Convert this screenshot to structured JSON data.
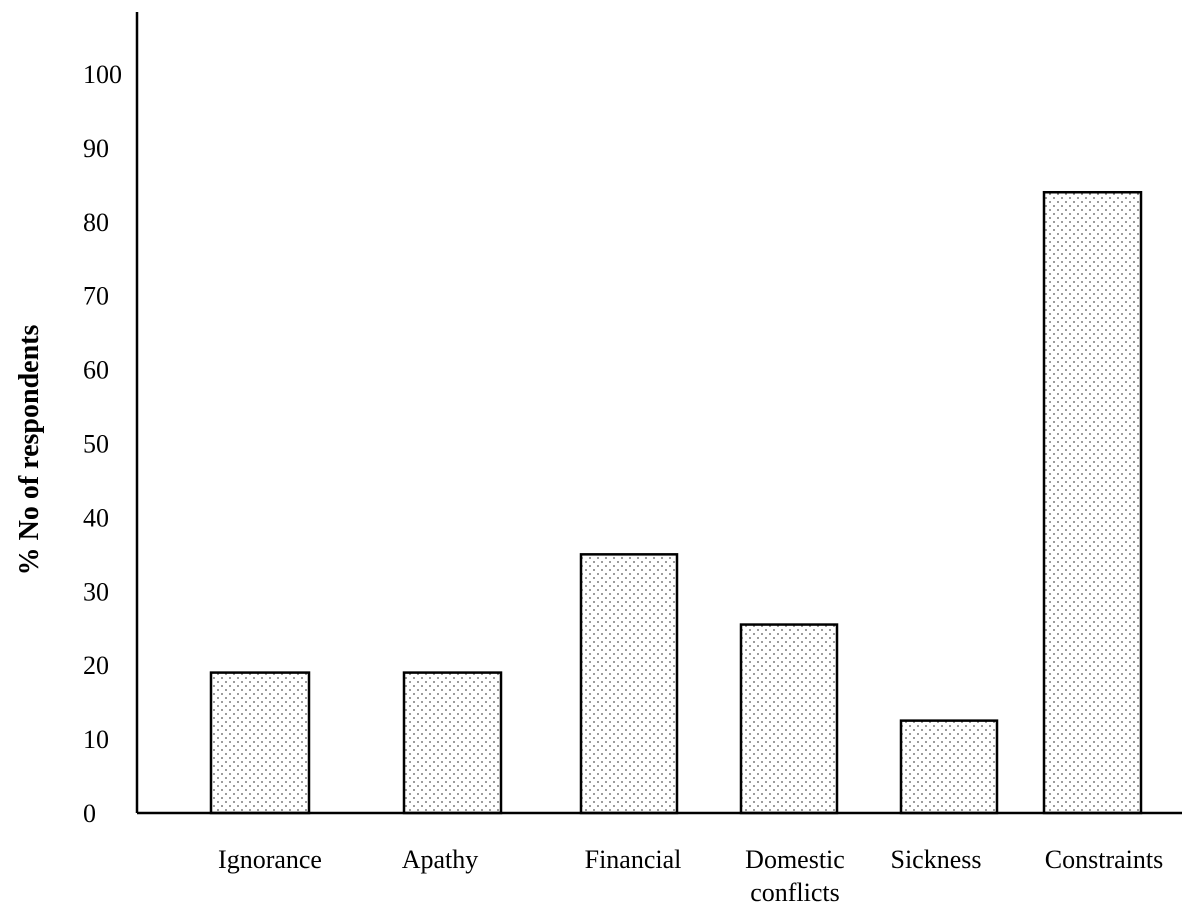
{
  "chart_data": {
    "type": "bar",
    "ylabel": "% No of respondents",
    "xlabel": "",
    "ylim": [
      0,
      100
    ],
    "yticks": [
      0,
      10,
      20,
      30,
      40,
      50,
      60,
      70,
      80,
      90,
      100
    ],
    "categories": [
      [
        "Ignorance"
      ],
      [
        "Apathy"
      ],
      [
        "Financial"
      ],
      [
        "Domestic",
        "conflicts"
      ],
      [
        "Sickness"
      ],
      [
        "Constraints"
      ]
    ],
    "values": [
      19,
      19,
      35,
      25.5,
      12.5,
      84
    ],
    "grid": false,
    "legend": "none",
    "colors": {
      "bar_fill_pattern": "dotted",
      "stroke": "#000000",
      "background": "#ffffff"
    }
  }
}
